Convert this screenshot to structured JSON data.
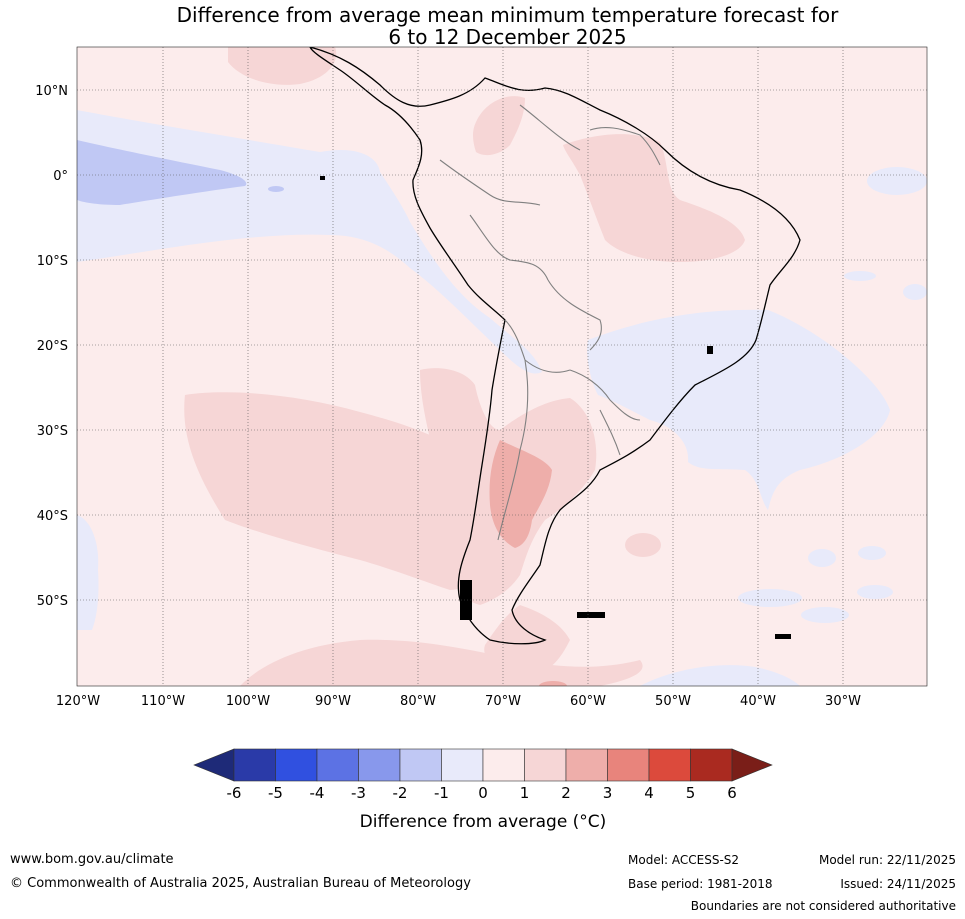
{
  "title": {
    "line1": "Difference from average mean minimum temperature forecast for",
    "line2": "6 to 12 December 2025"
  },
  "map": {
    "lat_labels": [
      "10°N",
      "0°",
      "10°S",
      "20°S",
      "30°S",
      "40°S",
      "50°S"
    ],
    "lon_labels": [
      "120°W",
      "110°W",
      "100°W",
      "90°W",
      "80°W",
      "70°W",
      "60°W",
      "50°W",
      "40°W",
      "30°W"
    ]
  },
  "colorbar": {
    "ticks": [
      "-6",
      "-5",
      "-4",
      "-3",
      "-2",
      "-1",
      "0",
      "1",
      "2",
      "3",
      "4",
      "5",
      "6"
    ],
    "colors": [
      "#2a3aa8",
      "#3050e0",
      "#5c72e4",
      "#8898ec",
      "#c0c8f4",
      "#e8eafa",
      "#fcecec",
      "#f6d6d6",
      "#eeaeaa",
      "#e8847c",
      "#dc4a3c",
      "#aa2a20"
    ],
    "low_color": "#1e2a78",
    "high_color": "#7a1e18",
    "label": "Difference from average (°C)"
  },
  "footer": {
    "url": "www.bom.gov.au/climate",
    "copyright": "© Commonwealth of Australia 2025, Australian Bureau of Meteorology",
    "model": "Model: ACCESS-S2",
    "base_period": "Base period: 1981-2018",
    "model_run": "Model run: 22/11/2025",
    "issued": "Issued: 24/11/2025",
    "disclaimer": "Boundaries are not considered authoritative"
  }
}
